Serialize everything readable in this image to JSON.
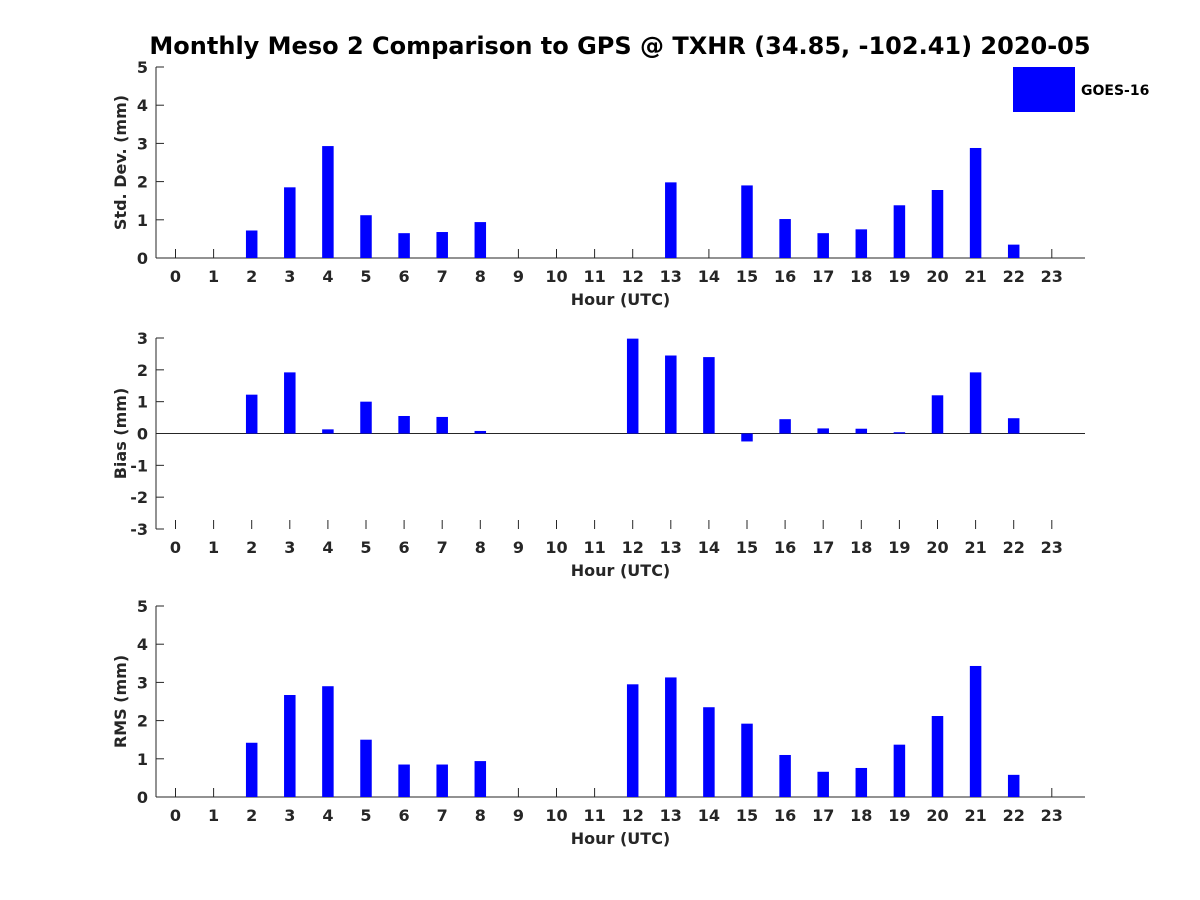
{
  "title": "Monthly Meso 2 Comparison to GPS @ TXHR (34.85, -102.41) 2020-05",
  "legend": {
    "label": "GOES-16",
    "color": "#0000ff",
    "placement": "top-right"
  },
  "chart_data": [
    {
      "type": "bar",
      "ylabel": "Std. Dev. (mm)",
      "xlabel": "Hour (UTC)",
      "ylim": [
        0,
        5
      ],
      "yticks": [
        "0",
        "1",
        "2",
        "3",
        "4",
        "5"
      ],
      "categories": [
        "0",
        "1",
        "2",
        "3",
        "4",
        "5",
        "6",
        "7",
        "8",
        "9",
        "10",
        "11",
        "12",
        "13",
        "14",
        "15",
        "16",
        "17",
        "18",
        "19",
        "20",
        "21",
        "22",
        "23"
      ],
      "series": [
        {
          "name": "GOES-16",
          "color": "#0000ff",
          "values": [
            null,
            null,
            0.72,
            1.85,
            2.93,
            1.12,
            0.65,
            0.68,
            0.94,
            null,
            null,
            null,
            null,
            1.98,
            null,
            1.9,
            1.02,
            0.65,
            0.75,
            1.38,
            1.78,
            2.88,
            0.35,
            null
          ]
        }
      ]
    },
    {
      "type": "bar",
      "ylabel": "Bias (mm)",
      "xlabel": "Hour (UTC)",
      "ylim": [
        -3,
        3
      ],
      "yticks": [
        "-3",
        "-2",
        "-1",
        "0",
        "1",
        "2",
        "3"
      ],
      "categories": [
        "0",
        "1",
        "2",
        "3",
        "4",
        "5",
        "6",
        "7",
        "8",
        "9",
        "10",
        "11",
        "12",
        "13",
        "14",
        "15",
        "16",
        "17",
        "18",
        "19",
        "20",
        "21",
        "22",
        "23"
      ],
      "series": [
        {
          "name": "GOES-16",
          "color": "#0000ff",
          "values": [
            null,
            null,
            1.22,
            1.92,
            0.13,
            1.0,
            0.55,
            0.52,
            0.08,
            null,
            null,
            null,
            2.98,
            2.45,
            2.4,
            -0.25,
            0.45,
            0.16,
            0.15,
            0.04,
            1.2,
            1.92,
            0.48,
            null
          ]
        }
      ]
    },
    {
      "type": "bar",
      "ylabel": "RMS (mm)",
      "xlabel": "Hour (UTC)",
      "ylim": [
        0,
        5
      ],
      "yticks": [
        "0",
        "1",
        "2",
        "3",
        "4",
        "5"
      ],
      "categories": [
        "0",
        "1",
        "2",
        "3",
        "4",
        "5",
        "6",
        "7",
        "8",
        "9",
        "10",
        "11",
        "12",
        "13",
        "14",
        "15",
        "16",
        "17",
        "18",
        "19",
        "20",
        "21",
        "22",
        "23"
      ],
      "series": [
        {
          "name": "GOES-16",
          "color": "#0000ff",
          "values": [
            null,
            null,
            1.42,
            2.67,
            2.9,
            1.5,
            0.85,
            0.85,
            0.94,
            null,
            null,
            null,
            2.95,
            3.13,
            2.35,
            1.92,
            1.1,
            0.66,
            0.76,
            1.37,
            2.12,
            3.43,
            0.58,
            null
          ]
        }
      ]
    }
  ]
}
